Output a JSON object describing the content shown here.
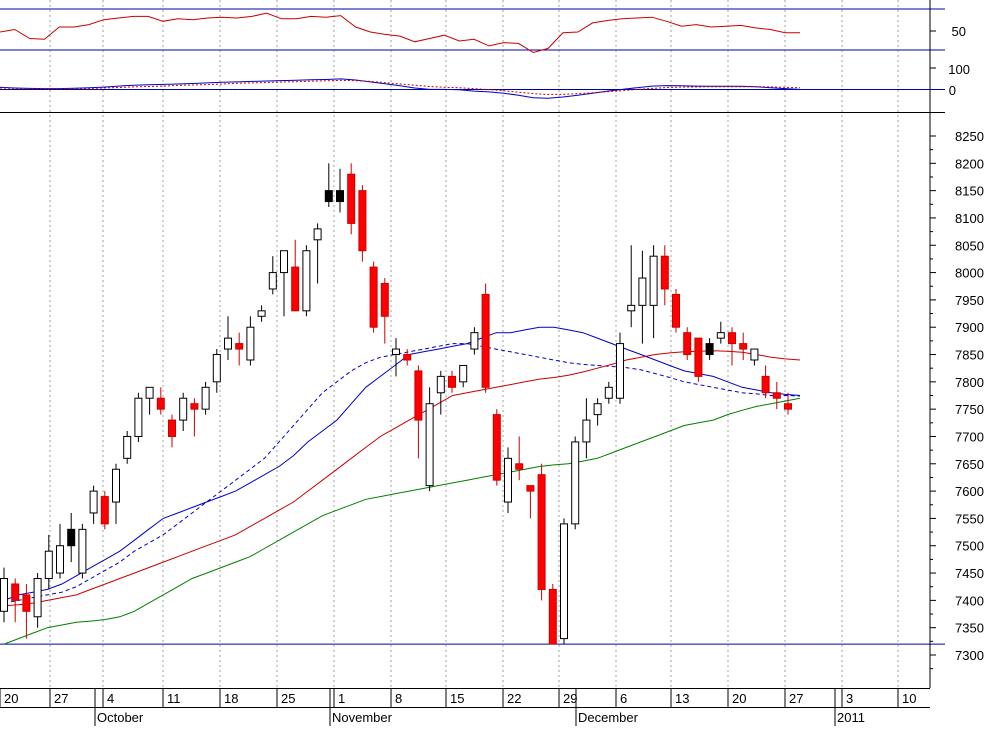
{
  "chart_data": [
    {
      "panel": "rsi",
      "type": "line",
      "right_axis_ticks": [
        "50"
      ],
      "hlines": [
        80,
        30
      ],
      "series": [
        {
          "color": "#cc0000",
          "values": [
            52,
            55,
            44,
            43,
            58,
            58,
            61,
            67,
            69,
            71,
            71,
            65,
            68,
            67,
            69,
            70,
            69,
            71,
            75,
            68,
            68,
            71,
            70,
            72,
            58,
            52,
            49,
            47,
            40,
            44,
            48,
            41,
            43,
            35,
            39,
            38,
            27,
            32,
            51,
            52,
            63,
            66,
            68,
            69,
            70,
            65,
            59,
            61,
            58,
            59,
            60,
            57,
            55,
            51,
            51
          ]
        }
      ]
    },
    {
      "panel": "macd",
      "type": "line",
      "right_axis_ticks": [
        "100",
        "0"
      ],
      "zero_line": true,
      "series": [
        {
          "color": "#0000cc",
          "style": "solid",
          "values": [
            8,
            5,
            3,
            2,
            2,
            4,
            6,
            9,
            14,
            18,
            20,
            22,
            24,
            26,
            29,
            32,
            34,
            36,
            38,
            40,
            42,
            44,
            45,
            48,
            43,
            34,
            25,
            15,
            5,
            -2,
            -2,
            -4,
            -10,
            -14,
            -20,
            -30,
            -42,
            -44,
            -38,
            -30,
            -20,
            -10,
            -2,
            6,
            14,
            16,
            15,
            14,
            13,
            13,
            13,
            11,
            6,
            2,
            -2
          ]
        },
        {
          "color": "#cc0000",
          "style": "dotted",
          "values": [
            5,
            3,
            2,
            1,
            1,
            2,
            3,
            5,
            7,
            10,
            12,
            14,
            17,
            19,
            21,
            24,
            27,
            29,
            31,
            33,
            35,
            37,
            39,
            41,
            40,
            36,
            30,
            24,
            18,
            12,
            8,
            6,
            2,
            -3,
            -8,
            -15,
            -22,
            -26,
            -25,
            -22,
            -18,
            -13,
            -8,
            -2,
            3,
            7,
            9,
            10,
            11,
            11,
            11,
            11,
            10,
            8,
            6
          ]
        }
      ]
    },
    {
      "panel": "price",
      "type": "candlestick",
      "ylim": [
        7250,
        8280
      ],
      "yticks": [
        "8250",
        "8200",
        "8150",
        "8100",
        "8050",
        "8000",
        "7950",
        "7900",
        "7850",
        "7800",
        "7750",
        "7700",
        "7650",
        "7600",
        "7550",
        "7500",
        "7450",
        "7400",
        "7350",
        "7300"
      ],
      "hline": 7320,
      "x_day_labels": [
        "20",
        "27",
        "4",
        "11",
        "18",
        "25",
        "1",
        "8",
        "15",
        "22",
        "29",
        "6",
        "13",
        "20",
        "27",
        "3",
        "10"
      ],
      "x_month_labels": [
        "October",
        "November",
        "December",
        "2011"
      ],
      "candle_colors": {
        "up": "#ffffff",
        "down": "#ff0000",
        "reversal": "#000000"
      },
      "candles": [
        {
          "o": 7380,
          "h": 7460,
          "l": 7360,
          "c": 7440
        },
        {
          "o": 7430,
          "h": 7440,
          "l": 7360,
          "c": 7400
        },
        {
          "o": 7410,
          "h": 7430,
          "l": 7330,
          "c": 7380
        },
        {
          "o": 7370,
          "h": 7450,
          "l": 7350,
          "c": 7440
        },
        {
          "o": 7440,
          "h": 7520,
          "l": 7420,
          "c": 7490
        },
        {
          "o": 7450,
          "h": 7540,
          "l": 7440,
          "c": 7500
        },
        {
          "o": 7500,
          "h": 7560,
          "l": 7470,
          "c": 7530,
          "k": "reversal"
        },
        {
          "o": 7450,
          "h": 7540,
          "l": 7440,
          "c": 7530
        },
        {
          "o": 7560,
          "h": 7610,
          "l": 7540,
          "c": 7600
        },
        {
          "o": 7590,
          "h": 7600,
          "l": 7530,
          "c": 7540
        },
        {
          "o": 7580,
          "h": 7650,
          "l": 7540,
          "c": 7640
        },
        {
          "o": 7660,
          "h": 7710,
          "l": 7650,
          "c": 7700
        },
        {
          "o": 7700,
          "h": 7780,
          "l": 7690,
          "c": 7770
        },
        {
          "o": 7770,
          "h": 7790,
          "l": 7740,
          "c": 7790
        },
        {
          "o": 7770,
          "h": 7790,
          "l": 7740,
          "c": 7750
        },
        {
          "o": 7730,
          "h": 7740,
          "l": 7680,
          "c": 7700
        },
        {
          "o": 7730,
          "h": 7780,
          "l": 7710,
          "c": 7770
        },
        {
          "o": 7760,
          "h": 7770,
          "l": 7700,
          "c": 7750
        },
        {
          "o": 7750,
          "h": 7800,
          "l": 7740,
          "c": 7790
        },
        {
          "o": 7800,
          "h": 7860,
          "l": 7780,
          "c": 7850
        },
        {
          "o": 7860,
          "h": 7920,
          "l": 7840,
          "c": 7880
        },
        {
          "o": 7870,
          "h": 7890,
          "l": 7830,
          "c": 7860
        },
        {
          "o": 7840,
          "h": 7920,
          "l": 7830,
          "c": 7900
        },
        {
          "o": 7920,
          "h": 7940,
          "l": 7910,
          "c": 7930
        },
        {
          "o": 7970,
          "h": 8030,
          "l": 7960,
          "c": 8000
        },
        {
          "o": 8000,
          "h": 8040,
          "l": 7920,
          "c": 8040
        },
        {
          "o": 8010,
          "h": 8060,
          "l": 7930,
          "c": 7930
        },
        {
          "o": 7930,
          "h": 8050,
          "l": 7920,
          "c": 8040
        },
        {
          "o": 8060,
          "h": 8090,
          "l": 7980,
          "c": 8080
        },
        {
          "o": 8130,
          "h": 8200,
          "l": 8120,
          "c": 8150,
          "k": "reversal"
        },
        {
          "o": 8130,
          "h": 8190,
          "l": 8110,
          "c": 8150,
          "k": "reversal"
        },
        {
          "o": 8180,
          "h": 8200,
          "l": 8070,
          "c": 8090
        },
        {
          "o": 8150,
          "h": 8160,
          "l": 8020,
          "c": 8040
        },
        {
          "o": 8010,
          "h": 8020,
          "l": 7890,
          "c": 7900
        },
        {
          "o": 7980,
          "h": 7990,
          "l": 7870,
          "c": 7920
        },
        {
          "o": 7850,
          "h": 7880,
          "l": 7810,
          "c": 7860
        },
        {
          "o": 7850,
          "h": 7860,
          "l": 7830,
          "c": 7840
        },
        {
          "o": 7820,
          "h": 7830,
          "l": 7660,
          "c": 7730
        },
        {
          "o": 7610,
          "h": 7790,
          "l": 7600,
          "c": 7760
        },
        {
          "o": 7780,
          "h": 7820,
          "l": 7740,
          "c": 7810
        },
        {
          "o": 7810,
          "h": 7820,
          "l": 7780,
          "c": 7790
        },
        {
          "o": 7800,
          "h": 7830,
          "l": 7790,
          "c": 7830
        },
        {
          "o": 7860,
          "h": 7900,
          "l": 7850,
          "c": 7890
        },
        {
          "o": 7960,
          "h": 7980,
          "l": 7780,
          "c": 7790
        },
        {
          "o": 7740,
          "h": 7750,
          "l": 7610,
          "c": 7620
        },
        {
          "o": 7580,
          "h": 7680,
          "l": 7560,
          "c": 7660
        },
        {
          "o": 7650,
          "h": 7700,
          "l": 7620,
          "c": 7640
        },
        {
          "o": 7610,
          "h": 7610,
          "l": 7550,
          "c": 7600
        },
        {
          "o": 7630,
          "h": 7650,
          "l": 7400,
          "c": 7420
        },
        {
          "o": 7420,
          "h": 7430,
          "l": 7320,
          "c": 7320
        },
        {
          "o": 7330,
          "h": 7550,
          "l": 7320,
          "c": 7540
        },
        {
          "o": 7540,
          "h": 7700,
          "l": 7530,
          "c": 7690
        },
        {
          "o": 7690,
          "h": 7770,
          "l": 7660,
          "c": 7730
        },
        {
          "o": 7740,
          "h": 7770,
          "l": 7720,
          "c": 7760
        },
        {
          "o": 7770,
          "h": 7800,
          "l": 7760,
          "c": 7790
        },
        {
          "o": 7770,
          "h": 7890,
          "l": 7760,
          "c": 7870
        },
        {
          "o": 7930,
          "h": 8050,
          "l": 7900,
          "c": 7940
        },
        {
          "o": 7940,
          "h": 8040,
          "l": 7870,
          "c": 7990
        },
        {
          "o": 7940,
          "h": 8050,
          "l": 7880,
          "c": 8030
        },
        {
          "o": 8030,
          "h": 8050,
          "l": 7940,
          "c": 7970
        },
        {
          "o": 7960,
          "h": 7970,
          "l": 7890,
          "c": 7900
        },
        {
          "o": 7890,
          "h": 7900,
          "l": 7840,
          "c": 7850
        },
        {
          "o": 7880,
          "h": 7880,
          "l": 7800,
          "c": 7810
        },
        {
          "o": 7850,
          "h": 7880,
          "l": 7840,
          "c": 7870,
          "k": "reversal"
        },
        {
          "o": 7880,
          "h": 7910,
          "l": 7870,
          "c": 7890
        },
        {
          "o": 7890,
          "h": 7900,
          "l": 7830,
          "c": 7870
        },
        {
          "o": 7870,
          "h": 7890,
          "l": 7840,
          "c": 7860
        },
        {
          "o": 7840,
          "h": 7860,
          "l": 7830,
          "c": 7860
        },
        {
          "o": 7810,
          "h": 7830,
          "l": 7770,
          "c": 7780
        },
        {
          "o": 7780,
          "h": 7800,
          "l": 7750,
          "c": 7770
        },
        {
          "o": 7760,
          "h": 7780,
          "l": 7740,
          "c": 7750
        }
      ],
      "series": [
        {
          "color": "#0000cc",
          "style": "solid",
          "values": [
            7400,
            7410,
            7415,
            7420,
            7430,
            7445,
            7460,
            7475,
            7490,
            7510,
            7530,
            7550,
            7560,
            7570,
            7580,
            7590,
            7600,
            7615,
            7630,
            7645,
            7665,
            7690,
            7710,
            7730,
            7760,
            7790,
            7810,
            7830,
            7850,
            7855,
            7860,
            7865,
            7870,
            7880,
            7890,
            7890,
            7895,
            7900,
            7900,
            7895,
            7890,
            7880,
            7870,
            7860,
            7850,
            7840,
            7830,
            7820,
            7815,
            7810,
            7800,
            7790,
            7785,
            7780,
            7777,
            7775
          ]
        },
        {
          "color": "#0000cc",
          "style": "dashed",
          "values": [
            7395,
            7400,
            7405,
            7410,
            7415,
            7425,
            7440,
            7455,
            7470,
            7490,
            7505,
            7520,
            7540,
            7560,
            7580,
            7600,
            7620,
            7640,
            7660,
            7690,
            7720,
            7750,
            7780,
            7800,
            7820,
            7835,
            7845,
            7850,
            7855,
            7860,
            7865,
            7870,
            7870,
            7865,
            7860,
            7855,
            7850,
            7845,
            7840,
            7835,
            7832,
            7830,
            7828,
            7826,
            7822,
            7815,
            7808,
            7800,
            7795,
            7790,
            7785,
            7780,
            7778,
            7775,
            7775,
            7774
          ]
        },
        {
          "color": "#cc0000",
          "style": "solid",
          "values": [
            7390,
            7392,
            7395,
            7400,
            7405,
            7410,
            7420,
            7430,
            7440,
            7450,
            7460,
            7470,
            7480,
            7490,
            7500,
            7510,
            7520,
            7535,
            7550,
            7565,
            7580,
            7600,
            7620,
            7640,
            7660,
            7680,
            7700,
            7715,
            7730,
            7745,
            7760,
            7775,
            7780,
            7785,
            7790,
            7795,
            7800,
            7805,
            7808,
            7812,
            7818,
            7825,
            7832,
            7840,
            7845,
            7850,
            7853,
            7855,
            7856,
            7857,
            7856,
            7854,
            7850,
            7845,
            7842,
            7840
          ]
        },
        {
          "color": "#008000",
          "style": "solid",
          "values": [
            7320,
            7330,
            7340,
            7350,
            7355,
            7360,
            7362,
            7365,
            7370,
            7380,
            7395,
            7410,
            7425,
            7440,
            7450,
            7460,
            7470,
            7480,
            7495,
            7510,
            7525,
            7540,
            7555,
            7565,
            7575,
            7585,
            7590,
            7595,
            7600,
            7605,
            7610,
            7615,
            7620,
            7625,
            7630,
            7635,
            7640,
            7645,
            7648,
            7650,
            7655,
            7660,
            7670,
            7680,
            7690,
            7700,
            7710,
            7720,
            7725,
            7730,
            7740,
            7748,
            7755,
            7760,
            7765,
            7770
          ]
        }
      ]
    }
  ]
}
